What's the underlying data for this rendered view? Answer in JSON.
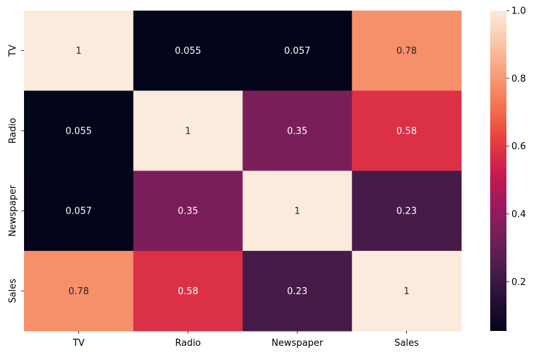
{
  "chart_data": {
    "type": "heatmap",
    "title": "",
    "xlabel": "",
    "ylabel": "",
    "x_categories": [
      "TV",
      "Radio",
      "Newspaper",
      "Sales"
    ],
    "y_categories": [
      "TV",
      "Radio",
      "Newspaper",
      "Sales"
    ],
    "values": [
      [
        1,
        0.055,
        0.057,
        0.78
      ],
      [
        0.055,
        1,
        0.35,
        0.58
      ],
      [
        0.057,
        0.35,
        1,
        0.23
      ],
      [
        0.78,
        0.58,
        0.23,
        1
      ]
    ],
    "annotations": [
      [
        "1",
        "0.055",
        "0.057",
        "0.78"
      ],
      [
        "0.055",
        "1",
        "0.35",
        "0.58"
      ],
      [
        "0.057",
        "0.35",
        "1",
        "0.23"
      ],
      [
        "0.78",
        "0.58",
        "0.23",
        "1"
      ]
    ],
    "colormap": "rocket",
    "colorbar": {
      "range": [
        0.055,
        1.0
      ],
      "ticks": [
        0.2,
        0.4,
        0.6,
        0.8,
        1.0
      ],
      "tick_labels": [
        "0.2",
        "0.4",
        "0.6",
        "0.8",
        "1.0"
      ]
    },
    "grid": false,
    "legend": "colorbar-right"
  }
}
